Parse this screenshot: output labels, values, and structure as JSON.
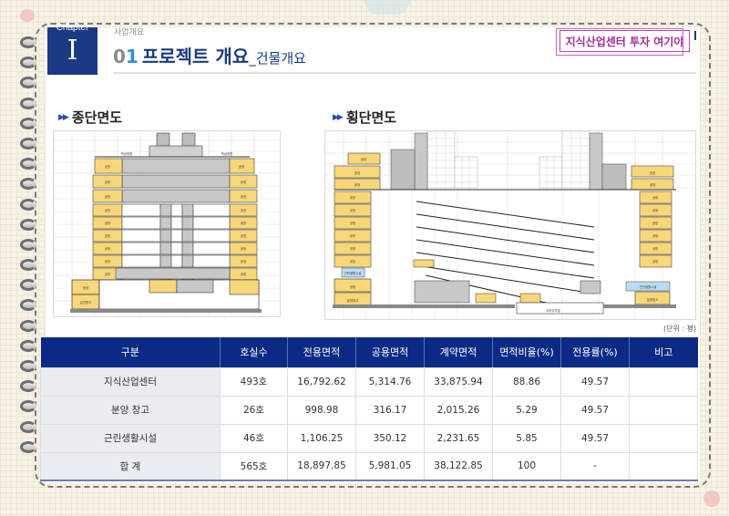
{
  "header": {
    "chapter_label": "Chapter",
    "chapter_number": "I",
    "breadcrumb": "사업개요",
    "title_number_prefix": "0",
    "title_number_accent": "1",
    "title_main": "프로젝트 개요",
    "title_sub": "_건물개요",
    "tag": "지식산업센터 투자 여기야"
  },
  "sections": {
    "longitudinal": {
      "title": "종단면도",
      "arrows": "▶▶"
    },
    "transverse": {
      "title": "횡단면도",
      "arrows": "▶▶"
    }
  },
  "drawing_labels": {
    "office": "공장",
    "warehouse": "분양창고",
    "parking": "지하주차장",
    "mech": "기계실",
    "ev": "E/V",
    "retail": "근린생활시설",
    "rooftop": "옥상정원"
  },
  "table": {
    "unit_note": "(단위 : 평)",
    "columns": [
      "구분",
      "호실수",
      "전용면적",
      "공용면적",
      "계약면적",
      "면적비율(%)",
      "전용률(%)",
      "비고"
    ],
    "rows": [
      [
        "지식산업센터",
        "493호",
        "16,792.62",
        "5,314.76",
        "33,875.94",
        "88.86",
        "49.57",
        ""
      ],
      [
        "분양 창고",
        "26호",
        "998.98",
        "316.17",
        "2,015.26",
        "5.29",
        "49.57",
        ""
      ],
      [
        "근린생활시설",
        "46호",
        "1,106.25",
        "350.12",
        "2,231.65",
        "5.85",
        "49.57",
        ""
      ],
      [
        "합 계",
        "565호",
        "18,897.85",
        "5,981.05",
        "38,122.85",
        "100",
        "-",
        ""
      ]
    ]
  },
  "colors": {
    "navy": "#0b2a86",
    "title_blue": "#1b3a84",
    "accent_blue": "#2f8fe0",
    "tag_magenta": "#a0309a",
    "drawing_yellow": "#f8d77a",
    "drawing_gray": "#bcbcbc",
    "drawing_blue": "#bcdcf5"
  }
}
